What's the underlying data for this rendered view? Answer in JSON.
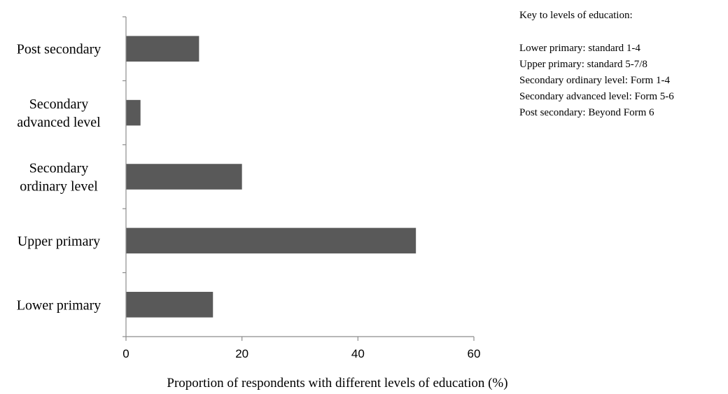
{
  "chart_data": {
    "type": "bar",
    "orientation": "horizontal",
    "categories": [
      "Post secondary",
      "Secondary advanced level",
      "Secondary ordinary level",
      "Upper primary",
      "Lower primary"
    ],
    "category_lines": [
      [
        "Post secondary"
      ],
      [
        "Secondary",
        "advanced level"
      ],
      [
        "Secondary",
        "ordinary level"
      ],
      [
        "Upper primary"
      ],
      [
        "Lower primary"
      ]
    ],
    "values": [
      12.6,
      2.5,
      20,
      50,
      15
    ],
    "xlabel": "Proportion of respondents with different levels of education (%)",
    "ylabel": "",
    "xlim": [
      0,
      60
    ],
    "xticks": [
      "0",
      "20",
      "40",
      "60"
    ],
    "grid": false,
    "bar_color": "#595959",
    "axis_color": "#8c8c8c"
  },
  "key": {
    "title": "Key to levels of education:",
    "lines": [
      "Lower primary: standard 1-4",
      "Upper primary: standard 5-7/8",
      "Secondary ordinary level: Form 1-4",
      "Secondary advanced level: Form 5-6",
      "Post secondary: Beyond Form 6"
    ]
  }
}
